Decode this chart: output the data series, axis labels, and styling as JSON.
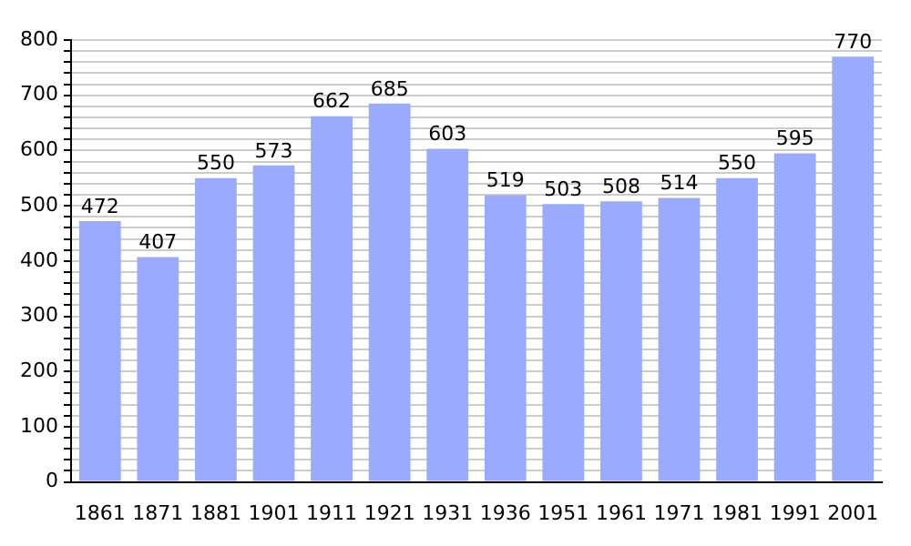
{
  "chart_data": {
    "type": "bar",
    "categories": [
      "1861",
      "1871",
      "1881",
      "1901",
      "1911",
      "1921",
      "1931",
      "1936",
      "1951",
      "1961",
      "1971",
      "1981",
      "1991",
      "2001"
    ],
    "values": [
      472,
      407,
      550,
      573,
      662,
      685,
      603,
      519,
      503,
      508,
      514,
      550,
      595,
      770
    ],
    "color": "#99aaff",
    "data_labels": true,
    "grid": "y",
    "legend": false,
    "ylim": [
      0,
      800
    ],
    "yticks": [
      0,
      {
        "value": 20,
        "label": null
      },
      {
        "value": 40,
        "label": null
      },
      {
        "value": 60,
        "label": null
      },
      {
        "value": 80,
        "label": null
      },
      100,
      {
        "value": 120,
        "label": null
      },
      {
        "value": 140,
        "label": null
      },
      {
        "value": 160,
        "label": null
      },
      {
        "value": 180,
        "label": null
      },
      200,
      {
        "value": 220,
        "label": null
      },
      {
        "value": 240,
        "label": null
      },
      {
        "value": 260,
        "label": null
      },
      {
        "value": 280,
        "label": null
      },
      300,
      {
        "value": 320,
        "label": null
      },
      {
        "value": 340,
        "label": null
      },
      {
        "value": 360,
        "label": null
      },
      {
        "value": 380,
        "label": null
      },
      400,
      {
        "value": 420,
        "label": null
      },
      {
        "value": 440,
        "label": null
      },
      {
        "value": 460,
        "label": null
      },
      {
        "value": 480,
        "label": null
      },
      500,
      {
        "value": 520,
        "label": null
      },
      {
        "value": 540,
        "label": null
      },
      {
        "value": 560,
        "label": null
      },
      {
        "value": 580,
        "label": null
      },
      600,
      {
        "value": 620,
        "label": null
      },
      {
        "value": 640,
        "label": null
      },
      {
        "value": 660,
        "label": null
      },
      {
        "value": 680,
        "label": null
      },
      700,
      {
        "value": 720,
        "label": null
      },
      {
        "value": 740,
        "label": null
      },
      {
        "value": 760,
        "label": null
      },
      {
        "value": 780,
        "label": null
      },
      800
    ]
  }
}
